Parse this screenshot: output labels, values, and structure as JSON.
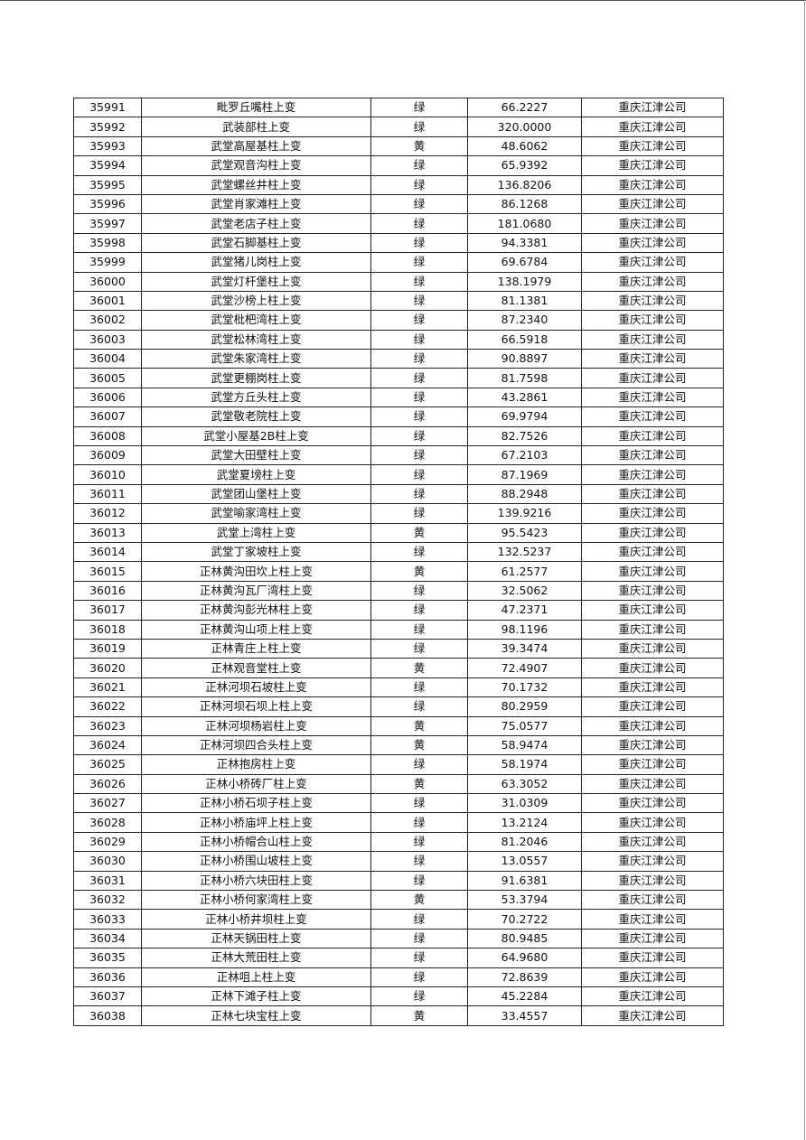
{
  "table": {
    "rows": [
      [
        "35991",
        "毗罗丘嘴柱上变",
        "绿",
        "66.2227",
        "重庆江津公司"
      ],
      [
        "35992",
        "武装部柱上变",
        "绿",
        "320.0000",
        "重庆江津公司"
      ],
      [
        "35993",
        "武堂高屋基柱上变",
        "黄",
        "48.6062",
        "重庆江津公司"
      ],
      [
        "35994",
        "武堂观音沟柱上变",
        "绿",
        "65.9392",
        "重庆江津公司"
      ],
      [
        "35995",
        "武堂螺丝井柱上变",
        "绿",
        "136.8206",
        "重庆江津公司"
      ],
      [
        "35996",
        "武堂肖家滩柱上变",
        "绿",
        "86.1268",
        "重庆江津公司"
      ],
      [
        "35997",
        "武堂老店子柱上变",
        "绿",
        "181.0680",
        "重庆江津公司"
      ],
      [
        "35998",
        "武堂石脚基柱上变",
        "绿",
        "94.3381",
        "重庆江津公司"
      ],
      [
        "35999",
        "武堂猪儿岗柱上变",
        "绿",
        "69.6784",
        "重庆江津公司"
      ],
      [
        "36000",
        "武堂灯杆堡柱上变",
        "绿",
        "138.1979",
        "重庆江津公司"
      ],
      [
        "36001",
        "武堂沙榜上柱上变",
        "绿",
        "81.1381",
        "重庆江津公司"
      ],
      [
        "36002",
        "武堂枇杷湾柱上变",
        "绿",
        "87.2340",
        "重庆江津公司"
      ],
      [
        "36003",
        "武堂松林湾柱上变",
        "绿",
        "66.5918",
        "重庆江津公司"
      ],
      [
        "36004",
        "武堂朱家湾柱上变",
        "绿",
        "90.8897",
        "重庆江津公司"
      ],
      [
        "36005",
        "武堂更棚岗柱上变",
        "绿",
        "81.7598",
        "重庆江津公司"
      ],
      [
        "36006",
        "武堂方丘头柱上变",
        "绿",
        "43.2861",
        "重庆江津公司"
      ],
      [
        "36007",
        "武堂敬老院柱上变",
        "绿",
        "69.9794",
        "重庆江津公司"
      ],
      [
        "36008",
        "武堂小屋基2B柱上变",
        "绿",
        "82.7526",
        "重庆江津公司"
      ],
      [
        "36009",
        "武堂大田壁柱上变",
        "绿",
        "67.2103",
        "重庆江津公司"
      ],
      [
        "36010",
        "武堂夏塝柱上变",
        "绿",
        "87.1969",
        "重庆江津公司"
      ],
      [
        "36011",
        "武堂团山堡柱上变",
        "绿",
        "88.2948",
        "重庆江津公司"
      ],
      [
        "36012",
        "武堂喻家湾柱上变",
        "绿",
        "139.9216",
        "重庆江津公司"
      ],
      [
        "36013",
        "武堂上湾柱上变",
        "黄",
        "95.5423",
        "重庆江津公司"
      ],
      [
        "36014",
        "武堂丁家坡柱上变",
        "绿",
        "132.5237",
        "重庆江津公司"
      ],
      [
        "36015",
        "正林黄沟田坎上柱上变",
        "黄",
        "61.2577",
        "重庆江津公司"
      ],
      [
        "36016",
        "正林黄沟瓦厂湾柱上变",
        "绿",
        "32.5062",
        "重庆江津公司"
      ],
      [
        "36017",
        "正林黄沟彭光林柱上变",
        "绿",
        "47.2371",
        "重庆江津公司"
      ],
      [
        "36018",
        "正林黄沟山项上柱上变",
        "绿",
        "98.1196",
        "重庆江津公司"
      ],
      [
        "36019",
        "正林青庄上柱上变",
        "绿",
        "39.3474",
        "重庆江津公司"
      ],
      [
        "36020",
        "正林观音堂柱上变",
        "黄",
        "72.4907",
        "重庆江津公司"
      ],
      [
        "36021",
        "正林河坝石坡柱上变",
        "绿",
        "70.1732",
        "重庆江津公司"
      ],
      [
        "36022",
        "正林河坝石坝上柱上变",
        "绿",
        "80.2959",
        "重庆江津公司"
      ],
      [
        "36023",
        "正林河坝杨岩柱上变",
        "黄",
        "75.0577",
        "重庆江津公司"
      ],
      [
        "36024",
        "正林河坝四合头柱上变",
        "黄",
        "58.9474",
        "重庆江津公司"
      ],
      [
        "36025",
        "正林抱房柱上变",
        "绿",
        "58.1974",
        "重庆江津公司"
      ],
      [
        "36026",
        "正林小桥砖厂柱上变",
        "黄",
        "63.3052",
        "重庆江津公司"
      ],
      [
        "36027",
        "正林小桥石坝子柱上变",
        "绿",
        "31.0309",
        "重庆江津公司"
      ],
      [
        "36028",
        "正林小桥庙坪上柱上变",
        "绿",
        "13.2124",
        "重庆江津公司"
      ],
      [
        "36029",
        "正林小桥帽合山柱上变",
        "绿",
        "81.2046",
        "重庆江津公司"
      ],
      [
        "36030",
        "正林小桥围山坡柱上变",
        "绿",
        "13.0557",
        "重庆江津公司"
      ],
      [
        "36031",
        "正林小桥六块田柱上变",
        "绿",
        "91.6381",
        "重庆江津公司"
      ],
      [
        "36032",
        "正林小桥何家湾柱上变",
        "黄",
        "53.3794",
        "重庆江津公司"
      ],
      [
        "36033",
        "正林小桥井坝柱上变",
        "绿",
        "70.2722",
        "重庆江津公司"
      ],
      [
        "36034",
        "正林天锅田柱上变",
        "绿",
        "80.9485",
        "重庆江津公司"
      ],
      [
        "36035",
        "正林大荒田柱上变",
        "绿",
        "64.9680",
        "重庆江津公司"
      ],
      [
        "36036",
        "正林咀上柱上变",
        "绿",
        "72.8639",
        "重庆江津公司"
      ],
      [
        "36037",
        "正林下滩子柱上变",
        "绿",
        "45.2284",
        "重庆江津公司"
      ],
      [
        "36038",
        "正林七块宝柱上变",
        "黄",
        "33.4557",
        "重庆江津公司"
      ]
    ]
  }
}
